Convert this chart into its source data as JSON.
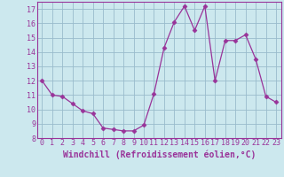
{
  "x": [
    0,
    1,
    2,
    3,
    4,
    5,
    6,
    7,
    8,
    9,
    10,
    11,
    12,
    13,
    14,
    15,
    16,
    17,
    18,
    19,
    20,
    21,
    22,
    23
  ],
  "y": [
    12.0,
    11.0,
    10.9,
    10.4,
    9.9,
    9.7,
    8.7,
    8.6,
    8.5,
    8.5,
    8.9,
    11.1,
    14.3,
    16.1,
    17.2,
    15.5,
    17.2,
    12.0,
    14.8,
    14.8,
    15.2,
    13.5,
    10.9,
    10.5
  ],
  "line_color": "#993399",
  "marker": "D",
  "marker_size": 2.5,
  "bg_color": "#cce8ee",
  "grid_color": "#99bbcc",
  "xlabel": "Windchill (Refroidissement éolien,°C)",
  "xlabel_fontsize": 7.0,
  "tick_fontsize": 6.0,
  "ylim": [
    8,
    17.5
  ],
  "yticks": [
    8,
    9,
    10,
    11,
    12,
    13,
    14,
    15,
    16,
    17
  ],
  "xlim": [
    -0.5,
    23.5
  ],
  "xticks": [
    0,
    1,
    2,
    3,
    4,
    5,
    6,
    7,
    8,
    9,
    10,
    11,
    12,
    13,
    14,
    15,
    16,
    17,
    18,
    19,
    20,
    21,
    22,
    23
  ]
}
